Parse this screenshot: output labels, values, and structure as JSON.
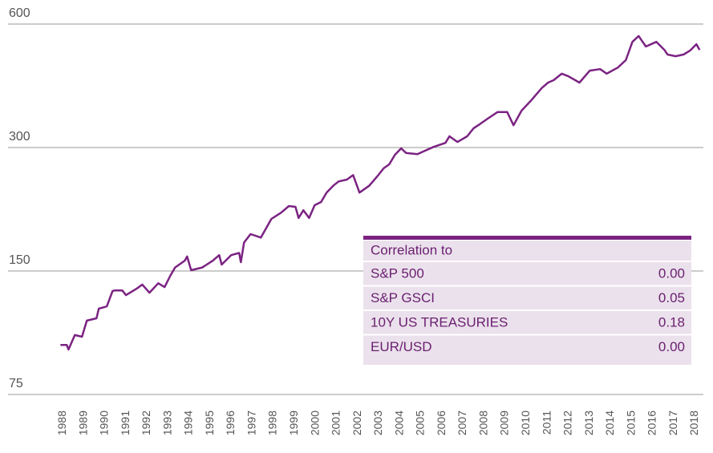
{
  "chart_data": {
    "type": "line",
    "log_y": true,
    "grid": true,
    "color": "#7b2382",
    "x": [
      1987.89,
      1988.19,
      1988.27,
      1988.57,
      1988.91,
      1989.14,
      1989.6,
      1989.71,
      1990.09,
      1990.36,
      1990.47,
      1990.82,
      1991.0,
      1991.5,
      1991.77,
      1992.11,
      1992.53,
      1992.83,
      1993.1,
      1993.33,
      1993.79,
      1993.9,
      1994.09,
      1994.62,
      1995.12,
      1995.42,
      1995.54,
      1995.99,
      1996.37,
      1996.45,
      1996.6,
      1996.91,
      1997.4,
      1997.9,
      1998.35,
      1998.73,
      1999.04,
      1999.19,
      1999.42,
      1999.69,
      1999.95,
      2000.26,
      2000.52,
      2000.83,
      2001.09,
      2001.48,
      2001.78,
      2002.08,
      2002.54,
      2002.92,
      2003.23,
      2003.49,
      2003.76,
      2004.06,
      2004.29,
      2004.83,
      2005.21,
      2005.59,
      2006.16,
      2006.35,
      2006.73,
      2007.19,
      2007.49,
      2007.79,
      2008.17,
      2008.63,
      2009.09,
      2009.39,
      2009.77,
      2010.23,
      2010.73,
      2011.03,
      2011.3,
      2011.68,
      2011.98,
      2012.52,
      2013.01,
      2013.5,
      2013.81,
      2014.34,
      2014.72,
      2015.03,
      2015.33,
      2015.67,
      2016.17,
      2016.55,
      2016.7,
      2017.08,
      2017.46,
      2017.77,
      2018.07,
      2018.22
    ],
    "values": [
      99,
      99,
      96.5,
      104.7,
      103.7,
      113.5,
      115,
      121.4,
      123,
      134,
      134.5,
      134.5,
      131,
      135.8,
      139,
      132.8,
      140,
      137,
      146,
      153,
      159,
      162.7,
      150.7,
      153,
      159,
      164,
      155.5,
      164,
      166,
      157.6,
      176,
      184.5,
      181,
      201,
      208,
      216,
      215,
      202,
      211,
      202,
      217,
      221,
      233,
      242,
      248,
      250.6,
      257,
      233,
      242,
      255,
      267,
      273,
      288,
      298.7,
      291,
      289,
      295,
      301,
      308,
      319.5,
      309.5,
      319.5,
      334,
      342,
      353,
      366,
      366,
      340,
      369,
      391,
      419,
      432,
      438,
      454,
      448,
      432,
      462,
      466,
      454,
      470,
      490,
      543,
      561,
      529,
      543,
      519,
      505.6,
      501,
      505.6,
      517,
      536,
      519
    ],
    "xlim": [
      1985.4,
      2018.4
    ],
    "xticks": [
      1988,
      1989,
      1990,
      1991,
      1992,
      1993,
      1994,
      1995,
      1996,
      1997,
      1998,
      1999,
      2000,
      2001,
      2002,
      2003,
      2004,
      2005,
      2006,
      2007,
      2008,
      2009,
      2010,
      2011,
      2012,
      2013,
      2014,
      2015,
      2016,
      2017,
      2018
    ],
    "ylim": [
      75,
      600
    ],
    "yticks": [
      75,
      150,
      300,
      600
    ],
    "table": {
      "title": "Correlation to",
      "rows": [
        [
          "S&P 500",
          "0.00"
        ],
        [
          "S&P GSCI",
          "0.05"
        ],
        [
          "10Y US TREASURIES",
          "0.18"
        ],
        [
          "EUR/USD",
          "0.00"
        ]
      ]
    }
  }
}
